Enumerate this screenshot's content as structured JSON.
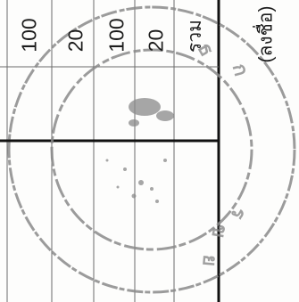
{
  "document": {
    "values": [
      "100",
      "20",
      "100",
      "20"
    ],
    "total_label": "รวม",
    "signature_label": "(ลงชื่อ)"
  },
  "stamp": {
    "color": "#8a8a8a"
  }
}
